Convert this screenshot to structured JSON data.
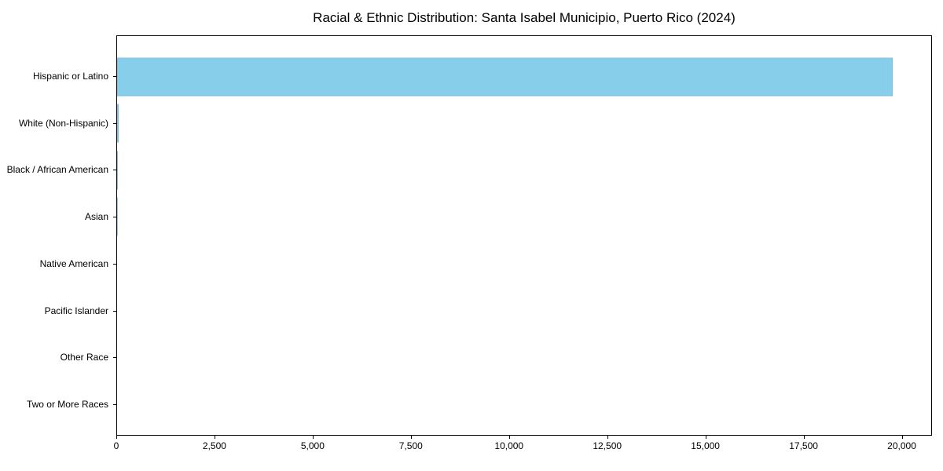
{
  "title": "Racial & Ethnic Distribution: Santa Isabel Municipio, Puerto Rico (2024)",
  "colors": {
    "bar": "#87CEEB",
    "axis": "#000000",
    "background": "#ffffff"
  },
  "chart_data": {
    "type": "bar",
    "orientation": "horizontal",
    "title": "Racial & Ethnic Distribution: Santa Isabel Municipio, Puerto Rico (2024)",
    "categories": [
      "Hispanic or Latino",
      "White (Non-Hispanic)",
      "Black / African American",
      "Asian",
      "Native American",
      "Pacific Islander",
      "Other Race",
      "Two or More Races"
    ],
    "values": [
      19780,
      50,
      15,
      6,
      0,
      0,
      0,
      0
    ],
    "xlabel": "",
    "ylabel": "",
    "xlim": [
      0,
      20770
    ],
    "x_ticks": [
      {
        "value": 0,
        "label": "0"
      },
      {
        "value": 2500,
        "label": "2,500"
      },
      {
        "value": 5000,
        "label": "5,000"
      },
      {
        "value": 7500,
        "label": "7,500"
      },
      {
        "value": 10000,
        "label": "10,000"
      },
      {
        "value": 12500,
        "label": "12,500"
      },
      {
        "value": 15000,
        "label": "15,000"
      },
      {
        "value": 17500,
        "label": "17,500"
      },
      {
        "value": 20000,
        "label": "20,000"
      }
    ],
    "grid": false,
    "legend": false,
    "bar_color": "#87CEEB"
  }
}
